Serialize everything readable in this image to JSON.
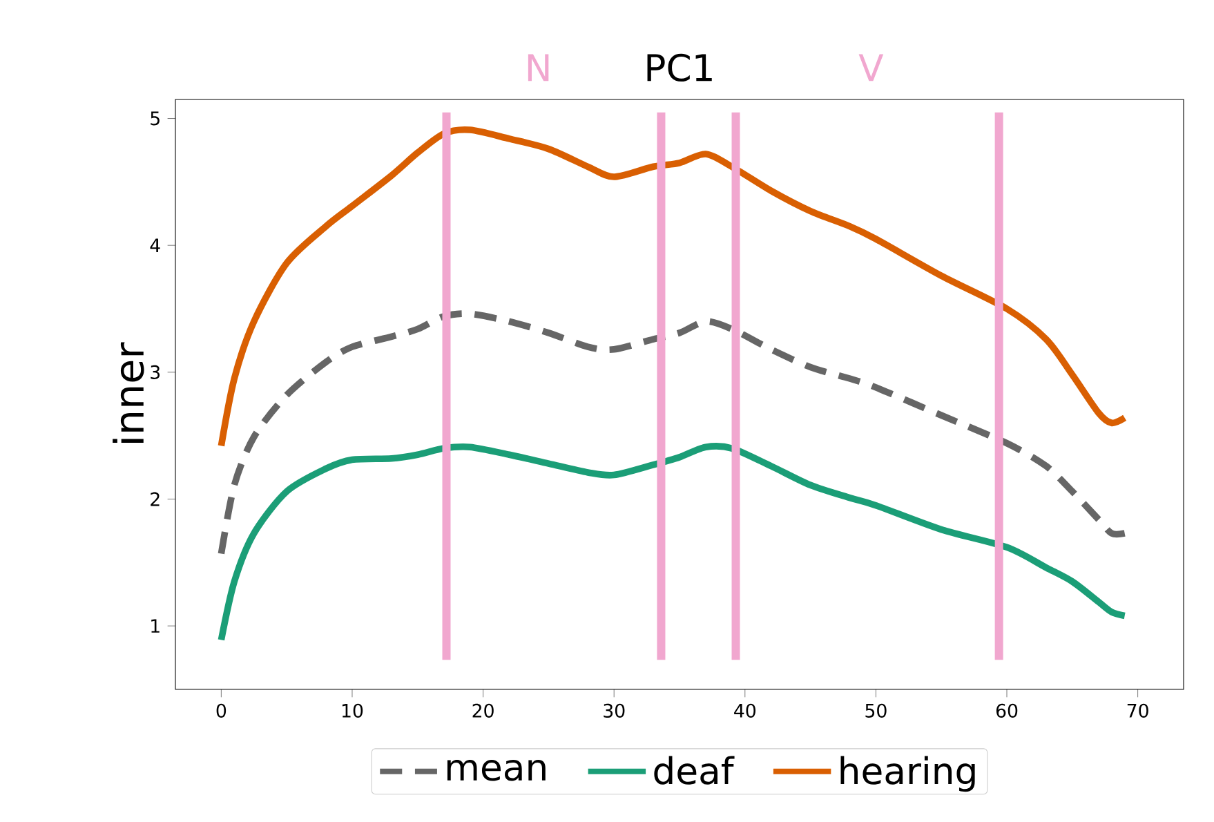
{
  "chart_data": {
    "type": "line",
    "title": "PC1",
    "ylabel": "inner",
    "xlim": [
      -3.5,
      73.5
    ],
    "ylim": [
      0.5,
      5.15
    ],
    "xticks": [
      0,
      10,
      20,
      30,
      40,
      50,
      60,
      70
    ],
    "yticks": [
      1,
      2,
      3,
      4,
      5
    ],
    "legend": "bottom",
    "grid": false,
    "x": [
      0,
      1,
      2.5,
      5,
      8,
      10,
      13,
      15,
      17,
      19,
      22,
      25,
      28,
      30,
      33,
      35,
      37,
      39,
      42,
      45,
      48,
      50,
      55,
      60,
      63,
      65,
      67,
      68,
      69
    ],
    "series": [
      {
        "name": "mean",
        "color": "#666666",
        "line_style": "dashed",
        "values": [
          1.57,
          2.11,
          2.49,
          2.82,
          3.08,
          3.2,
          3.28,
          3.34,
          3.44,
          3.46,
          3.4,
          3.31,
          3.2,
          3.18,
          3.26,
          3.31,
          3.4,
          3.34,
          3.18,
          3.04,
          2.95,
          2.88,
          2.66,
          2.44,
          2.26,
          2.06,
          1.84,
          1.73,
          1.73
        ]
      },
      {
        "name": "deaf",
        "color": "#1b9e77",
        "line_style": "solid",
        "values": [
          0.89,
          1.35,
          1.73,
          2.06,
          2.24,
          2.31,
          2.32,
          2.35,
          2.4,
          2.41,
          2.35,
          2.28,
          2.21,
          2.19,
          2.27,
          2.33,
          2.41,
          2.4,
          2.26,
          2.11,
          2.01,
          1.95,
          1.76,
          1.62,
          1.46,
          1.35,
          1.19,
          1.11,
          1.08
        ]
      },
      {
        "name": "hearing",
        "color": "#d95f02",
        "line_style": "solid",
        "values": [
          2.42,
          2.95,
          3.4,
          3.86,
          4.15,
          4.31,
          4.55,
          4.73,
          4.88,
          4.91,
          4.84,
          4.76,
          4.62,
          4.54,
          4.62,
          4.65,
          4.72,
          4.62,
          4.43,
          4.27,
          4.15,
          4.05,
          3.76,
          3.5,
          3.26,
          2.98,
          2.68,
          2.6,
          2.64
        ]
      }
    ],
    "ref_lines": [
      {
        "axis": "x",
        "value": 17.2,
        "color": "#f1a7cf"
      },
      {
        "axis": "x",
        "value": 33.6,
        "color": "#f1a7cf"
      },
      {
        "axis": "x",
        "value": 39.3,
        "color": "#f1a7cf"
      },
      {
        "axis": "x",
        "value": 59.4,
        "color": "#f1a7cf"
      }
    ],
    "annotations": [
      "N",
      "V"
    ]
  }
}
